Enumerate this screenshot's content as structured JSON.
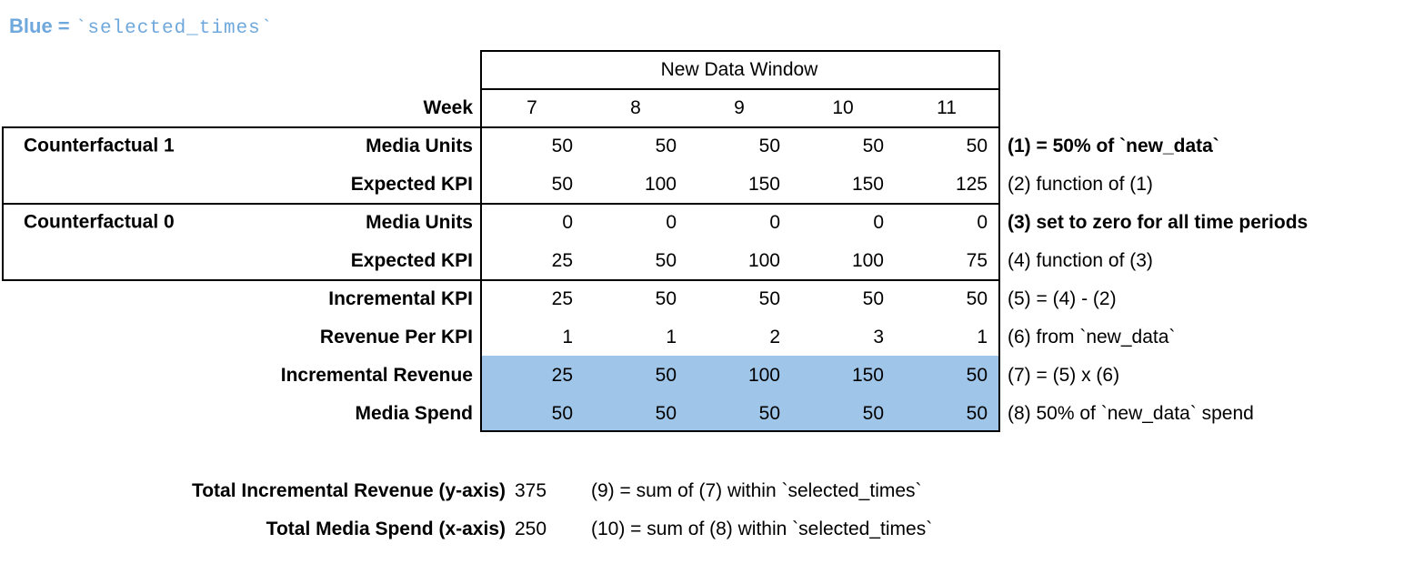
{
  "legend": {
    "prefix": "Blue = ",
    "code": "`selected_times`"
  },
  "table": {
    "window_header": "New Data Window",
    "week_label": "Week",
    "weeks": [
      "7",
      "8",
      "9",
      "10",
      "11"
    ],
    "rows": [
      {
        "group": "Counterfactual 1",
        "label": "Media Units",
        "values": [
          "50",
          "50",
          "50",
          "50",
          "50"
        ],
        "note": "(1) = 50% of `new_data`",
        "note_bold": true,
        "highlight": false
      },
      {
        "group": "",
        "label": "Expected KPI",
        "values": [
          "50",
          "100",
          "150",
          "150",
          "125"
        ],
        "note": "(2) function of (1)",
        "note_bold": false,
        "highlight": false
      },
      {
        "group": "Counterfactual 0",
        "label": "Media Units",
        "values": [
          "0",
          "0",
          "0",
          "0",
          "0"
        ],
        "note": "(3) set to zero for all time periods",
        "note_bold": true,
        "highlight": false
      },
      {
        "group": "",
        "label": "Expected KPI",
        "values": [
          "25",
          "50",
          "100",
          "100",
          "75"
        ],
        "note": "(4) function of (3)",
        "note_bold": false,
        "highlight": false
      },
      {
        "group": "",
        "label": "Incremental KPI",
        "values": [
          "25",
          "50",
          "50",
          "50",
          "50"
        ],
        "note": "(5) = (4) - (2)",
        "note_bold": false,
        "highlight": false
      },
      {
        "group": "",
        "label": "Revenue Per KPI",
        "values": [
          "1",
          "1",
          "2",
          "3",
          "1"
        ],
        "note": "(6) from `new_data`",
        "note_bold": false,
        "highlight": false
      },
      {
        "group": "",
        "label": "Incremental Revenue",
        "values": [
          "25",
          "50",
          "100",
          "150",
          "50"
        ],
        "note": "(7) = (5) x (6)",
        "note_bold": false,
        "highlight": true
      },
      {
        "group": "",
        "label": "Media Spend",
        "values": [
          "50",
          "50",
          "50",
          "50",
          "50"
        ],
        "note": "(8) 50% of `new_data` spend",
        "note_bold": false,
        "highlight": true
      }
    ]
  },
  "totals": [
    {
      "label": "Total Incremental Revenue (y-axis)",
      "value": "375",
      "note": "(9) = sum of (7) within `selected_times`"
    },
    {
      "label": "Total Media Spend (x-axis)",
      "value": "250",
      "note": "(10) = sum of (8) within `selected_times`"
    }
  ],
  "colors": {
    "highlight": "#9fc5e8",
    "legend_text": "#6fa8dc",
    "border": "#000000"
  }
}
